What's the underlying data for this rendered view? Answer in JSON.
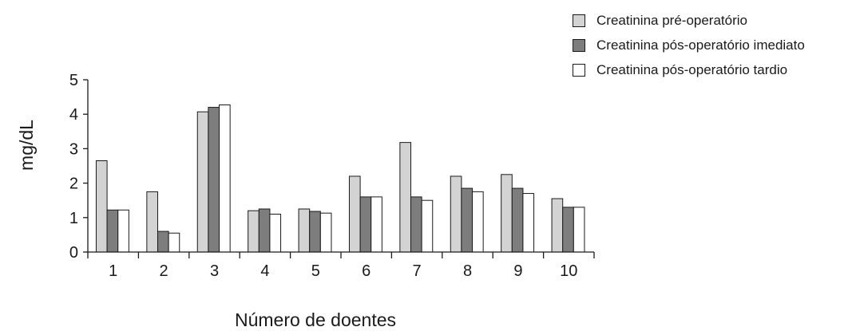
{
  "chart_data": {
    "type": "bar",
    "title": "",
    "ylabel": "mg/dL",
    "xlabel": "Número de doentes",
    "categories": [
      "1",
      "2",
      "3",
      "4",
      "5",
      "6",
      "7",
      "8",
      "9",
      "10"
    ],
    "ylim": [
      0,
      5
    ],
    "yticks": [
      "0",
      "1",
      "2",
      "3",
      "4",
      "5"
    ],
    "grid": false,
    "legend_position": "top-right",
    "series": [
      {
        "name": "Creatinina pré-operatório",
        "color": "#d3d3d3",
        "values": [
          2.65,
          1.75,
          4.07,
          1.2,
          1.25,
          2.2,
          3.18,
          2.2,
          2.25,
          1.55
        ]
      },
      {
        "name": "Creatinina pós-operatório imediato",
        "color": "#7d7d7d",
        "values": [
          1.22,
          0.6,
          4.2,
          1.25,
          1.18,
          1.6,
          1.6,
          1.85,
          1.85,
          1.3
        ]
      },
      {
        "name": "Creatinina pós-operatório tardio",
        "color": "#ffffff",
        "values": [
          1.22,
          0.55,
          4.27,
          1.1,
          1.13,
          1.6,
          1.5,
          1.75,
          1.7,
          1.3
        ]
      }
    ]
  }
}
